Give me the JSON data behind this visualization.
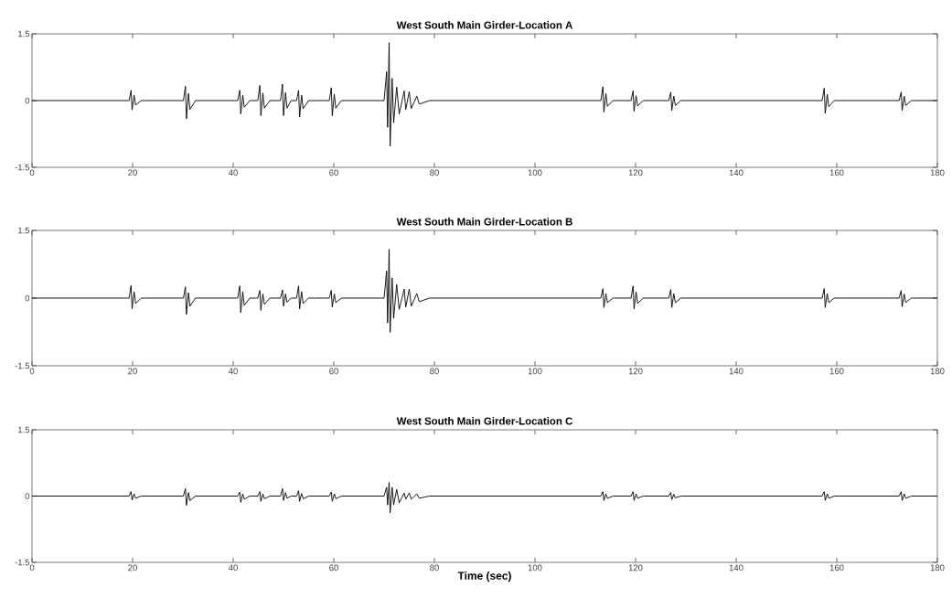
{
  "chart_data": [
    {
      "type": "line",
      "title": "West South Main Girder-Location A",
      "xlim": [
        0,
        180
      ],
      "ylim": [
        -1.5,
        1.5
      ],
      "xticks": [
        0,
        20,
        40,
        60,
        80,
        100,
        120,
        140,
        160,
        180
      ],
      "yticks": [
        -1.5,
        0,
        1.5
      ],
      "x": [
        0,
        19.3,
        19.7,
        19.9,
        20.3,
        20.6,
        21.7,
        30.1,
        30.5,
        30.7,
        31.1,
        31.4,
        32.5,
        40.9,
        41.3,
        41.5,
        41.9,
        42.2,
        43.3,
        44.9,
        45.3,
        45.5,
        45.9,
        46.2,
        47.3,
        49.4,
        49.8,
        50.0,
        50.4,
        50.7,
        51.5,
        52.6,
        53.0,
        53.2,
        53.6,
        53.9,
        55.0,
        59.1,
        59.5,
        59.7,
        60.1,
        60.4,
        61.5,
        70,
        70.5,
        70.7,
        71,
        71.2,
        71.6,
        71.9,
        72.5,
        73,
        74,
        74.3,
        75,
        75.4,
        76.5,
        77,
        79,
        113.1,
        113.5,
        113.7,
        114.1,
        114.4,
        115.5,
        119.1,
        119.5,
        119.7,
        120.1,
        120.4,
        121.5,
        126.6,
        127,
        127.2,
        127.6,
        127.9,
        129,
        157.1,
        157.5,
        157.7,
        158.1,
        158.4,
        159.5,
        172.4,
        172.8,
        173,
        173.4,
        173.7,
        174.8,
        180
      ],
      "series": [
        {
          "color": "#000000",
          "values": [
            0,
            0,
            0.23,
            -0.21,
            0.12,
            -0.1,
            0,
            0,
            0.32,
            -0.41,
            0.16,
            -0.2,
            0,
            0,
            0.23,
            -0.3,
            0.12,
            -0.15,
            0,
            0,
            0.34,
            -0.34,
            0.17,
            -0.17,
            0,
            0,
            0.37,
            -0.34,
            0.18,
            -0.17,
            0,
            0,
            0.23,
            -0.37,
            0.12,
            -0.18,
            0,
            0,
            0.29,
            -0.34,
            0.14,
            -0.17,
            0,
            0,
            0.65,
            -0.6,
            1.3,
            -1.03,
            0.5,
            -0.5,
            0.3,
            -0.3,
            0.22,
            -0.2,
            0.2,
            -0.18,
            0.1,
            -0.08,
            0,
            0,
            0.31,
            -0.26,
            0.16,
            -0.13,
            0,
            0,
            0.22,
            -0.24,
            0.11,
            -0.12,
            0,
            0,
            0.19,
            -0.22,
            0.1,
            -0.11,
            0,
            0,
            0.28,
            -0.29,
            0.14,
            -0.14,
            0,
            0,
            0.19,
            -0.22,
            0.1,
            -0.11,
            0,
            0
          ]
        }
      ]
    },
    {
      "type": "line",
      "title": "West South Main Girder-Location B",
      "xlim": [
        0,
        180
      ],
      "ylim": [
        -1.5,
        1.5
      ],
      "xticks": [
        0,
        20,
        40,
        60,
        80,
        100,
        120,
        140,
        160,
        180
      ],
      "yticks": [
        -1.5,
        0,
        1.5
      ],
      "x": [
        0,
        19.3,
        19.7,
        19.9,
        20.3,
        20.6,
        21.7,
        30.1,
        30.5,
        30.7,
        31.1,
        31.4,
        32.5,
        40.9,
        41.3,
        41.5,
        41.9,
        42.2,
        43.3,
        44.9,
        45.3,
        45.5,
        45.9,
        46.2,
        47.3,
        49.4,
        49.8,
        50.0,
        50.4,
        50.7,
        51.5,
        52.6,
        53.0,
        53.2,
        53.6,
        53.9,
        55.0,
        59.1,
        59.5,
        59.7,
        60.1,
        60.4,
        61.5,
        70,
        70.5,
        70.7,
        71,
        71.2,
        71.6,
        71.9,
        72.5,
        73,
        74,
        74.3,
        75,
        75.4,
        76.5,
        77,
        79,
        113.1,
        113.5,
        113.7,
        114.1,
        114.4,
        115.5,
        119.1,
        119.5,
        119.7,
        120.1,
        120.4,
        121.5,
        126.6,
        127,
        127.2,
        127.6,
        127.9,
        129,
        157.1,
        157.5,
        157.7,
        158.1,
        158.4,
        159.5,
        172.4,
        172.8,
        173,
        173.4,
        173.7,
        174.8,
        180
      ],
      "series": [
        {
          "color": "#000000",
          "values": [
            0,
            0,
            0.28,
            -0.24,
            0.14,
            -0.12,
            0,
            0,
            0.25,
            -0.36,
            0.12,
            -0.18,
            0,
            0,
            0.27,
            -0.32,
            0.14,
            -0.16,
            0,
            0,
            0.17,
            -0.27,
            0.09,
            -0.14,
            0,
            0,
            0.18,
            -0.18,
            0.09,
            -0.09,
            0,
            0,
            0.27,
            -0.24,
            0.14,
            -0.12,
            0,
            0,
            0.17,
            -0.2,
            0.09,
            -0.1,
            0,
            0,
            0.6,
            -0.55,
            1.08,
            -0.76,
            0.45,
            -0.45,
            0.3,
            -0.25,
            0.2,
            -0.2,
            0.2,
            -0.18,
            0.1,
            -0.08,
            0,
            0,
            0.21,
            -0.21,
            0.1,
            -0.1,
            0,
            0,
            0.27,
            -0.24,
            0.14,
            -0.12,
            0,
            0,
            0.19,
            -0.21,
            0.1,
            -0.1,
            0,
            0,
            0.21,
            -0.21,
            0.1,
            -0.1,
            0,
            0,
            0.17,
            -0.19,
            0.09,
            -0.1,
            0,
            0
          ]
        }
      ]
    },
    {
      "type": "line",
      "title": "West South Main Girder-Location C",
      "xlabel": "Time (sec)",
      "xlim": [
        0,
        180
      ],
      "ylim": [
        -1.5,
        1.5
      ],
      "xticks": [
        0,
        20,
        40,
        60,
        80,
        100,
        120,
        140,
        160,
        180
      ],
      "yticks": [
        -1.5,
        0,
        1.5
      ],
      "x": [
        0,
        19.3,
        19.7,
        19.9,
        20.3,
        20.6,
        21.7,
        30.1,
        30.5,
        30.7,
        31.1,
        31.4,
        32.5,
        40.9,
        41.3,
        41.5,
        41.9,
        42.2,
        43.3,
        44.9,
        45.3,
        45.5,
        45.9,
        46.2,
        47.3,
        49.4,
        49.8,
        50.0,
        50.4,
        50.7,
        51.5,
        52.6,
        53.0,
        53.2,
        53.6,
        53.9,
        55.0,
        59.1,
        59.5,
        59.7,
        60.1,
        60.4,
        61.5,
        70,
        70.5,
        70.7,
        71,
        71.2,
        71.6,
        71.9,
        72.5,
        73,
        74,
        74.3,
        75,
        75.4,
        76.5,
        77,
        79,
        113.1,
        113.5,
        113.7,
        114.1,
        114.4,
        115.5,
        119.1,
        119.5,
        119.7,
        120.1,
        120.4,
        121.5,
        126.6,
        127,
        127.2,
        127.6,
        127.9,
        129,
        157.1,
        157.5,
        157.7,
        158.1,
        158.4,
        159.5,
        172.4,
        172.8,
        173,
        173.4,
        173.7,
        174.8,
        180
      ],
      "series": [
        {
          "color": "#000000",
          "values": [
            0,
            0,
            0.1,
            -0.09,
            0.05,
            -0.05,
            0,
            0,
            0.17,
            -0.21,
            0.08,
            -0.1,
            0,
            0,
            0.09,
            -0.14,
            0.05,
            -0.07,
            0,
            0,
            0.1,
            -0.12,
            0.05,
            -0.06,
            0,
            0,
            0.17,
            -0.1,
            0.08,
            -0.05,
            0,
            0,
            0.12,
            -0.12,
            0.06,
            -0.06,
            0,
            0,
            0.09,
            -0.12,
            0.05,
            -0.06,
            0,
            0,
            0.2,
            -0.2,
            0.31,
            -0.38,
            0.2,
            -0.2,
            0.15,
            -0.15,
            0.07,
            -0.07,
            0.07,
            -0.07,
            0.05,
            -0.05,
            0,
            0,
            0.1,
            -0.1,
            0.05,
            -0.05,
            0,
            0,
            0.1,
            -0.1,
            0.05,
            -0.05,
            0,
            0,
            0.08,
            -0.08,
            0.04,
            -0.04,
            0,
            0,
            0.1,
            -0.1,
            0.05,
            -0.05,
            0,
            0,
            0.1,
            -0.1,
            0.05,
            -0.05,
            0,
            0
          ]
        }
      ]
    }
  ]
}
